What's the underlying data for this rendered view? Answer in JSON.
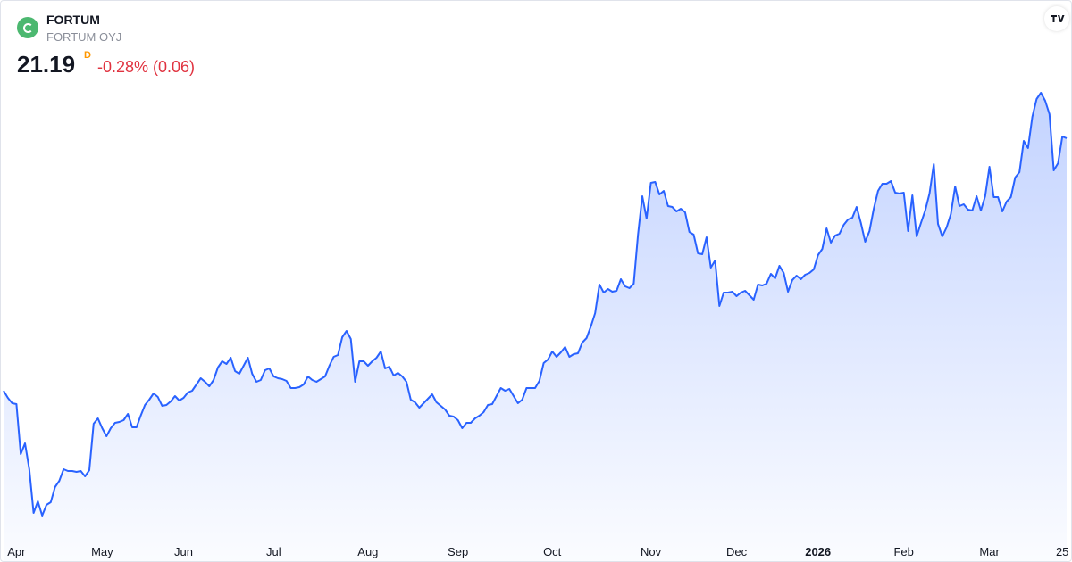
{
  "header": {
    "symbol": "FORTUM",
    "name": "FORTUM OYJ",
    "price": 21.19,
    "interval": "D",
    "change": "-0.28% (0.06)"
  },
  "chart_data": {
    "type": "area",
    "color": "#2962ff",
    "values": [
      15.53,
      15.37,
      15.25,
      15.23,
      14.11,
      14.35,
      13.77,
      12.79,
      13.05,
      12.73,
      12.97,
      13.03,
      13.37,
      13.51,
      13.77,
      13.73,
      13.73,
      13.71,
      13.73,
      13.61,
      13.75,
      14.79,
      14.91,
      14.69,
      14.51,
      14.69,
      14.81,
      14.83,
      14.87,
      15.01,
      14.71,
      14.71,
      14.97,
      15.21,
      15.33,
      15.47,
      15.39,
      15.19,
      15.21,
      15.29,
      15.41,
      15.31,
      15.37,
      15.49,
      15.53,
      15.67,
      15.81,
      15.73,
      15.63,
      15.77,
      16.05,
      16.19,
      16.13,
      16.27,
      15.97,
      15.91,
      16.09,
      16.27,
      15.91,
      15.73,
      15.77,
      15.99,
      16.03,
      15.85,
      15.81,
      15.79,
      15.75,
      15.59,
      15.59,
      15.61,
      15.67,
      15.85,
      15.77,
      15.73,
      15.79,
      15.85,
      16.09,
      16.29,
      16.33,
      16.73,
      16.87,
      16.69,
      15.73,
      16.19,
      16.19,
      16.09,
      16.19,
      16.27,
      16.41,
      16.03,
      16.07,
      15.87,
      15.93,
      15.85,
      15.73,
      15.33,
      15.27,
      15.15,
      15.25,
      15.35,
      15.45,
      15.27,
      15.19,
      15.11,
      14.97,
      14.95,
      14.87,
      14.69,
      14.81,
      14.81,
      14.91,
      14.97,
      15.05,
      15.21,
      15.23,
      15.41,
      15.59,
      15.53,
      15.57,
      15.41,
      15.25,
      15.33,
      15.59,
      15.59,
      15.59,
      15.75,
      16.15,
      16.23,
      16.41,
      16.29,
      16.39,
      16.51,
      16.29,
      16.35,
      16.37,
      16.61,
      16.71,
      16.97,
      17.27,
      17.91,
      17.73,
      17.81,
      17.75,
      17.77,
      18.03,
      17.87,
      17.83,
      17.93,
      19.03,
      19.89,
      19.39,
      20.19,
      20.21,
      19.93,
      20.01,
      19.67,
      19.65,
      19.55,
      19.61,
      19.53,
      19.09,
      19.03,
      18.61,
      18.59,
      18.97,
      18.29,
      18.45,
      17.43,
      17.73,
      17.73,
      17.75,
      17.65,
      17.73,
      17.77,
      17.67,
      17.57,
      17.91,
      17.89,
      17.93,
      18.15,
      18.05,
      18.33,
      18.17,
      17.75,
      18.01,
      18.11,
      18.03,
      18.13,
      18.17,
      18.25,
      18.57,
      18.71,
      19.17,
      18.85,
      19.01,
      19.05,
      19.25,
      19.37,
      19.41,
      19.65,
      19.29,
      18.87,
      19.11,
      19.61,
      20.01,
      20.17,
      20.17,
      20.23,
      19.97,
      19.95,
      19.97,
      19.11,
      19.91,
      18.99,
      19.29,
      19.57,
      19.95,
      20.61,
      19.27,
      18.99,
      19.19,
      19.49,
      20.11,
      19.67,
      19.71,
      19.59,
      19.57,
      19.89,
      19.57,
      19.89,
      20.55,
      19.87,
      19.87,
      19.55,
      19.77,
      19.87,
      20.31,
      20.43,
      21.13,
      20.97,
      21.67,
      22.07,
      22.21,
      22.03,
      21.73,
      20.47,
      20.63,
      21.23,
      21.19
    ],
    "xlim": [
      0,
      248
    ],
    "xticks": [
      {
        "value": 3,
        "label": "Apr"
      },
      {
        "value": 23,
        "label": "May"
      },
      {
        "value": 42,
        "label": "Jun"
      },
      {
        "value": 63,
        "label": "Jul"
      },
      {
        "value": 85,
        "label": "Aug"
      },
      {
        "value": 106,
        "label": "Sep"
      },
      {
        "value": 128,
        "label": "Oct"
      },
      {
        "value": 151,
        "label": "Nov"
      },
      {
        "value": 171,
        "label": "Dec"
      },
      {
        "value": 190,
        "label": "2026"
      },
      {
        "value": 210,
        "label": "Feb"
      },
      {
        "value": 230,
        "label": "Mar"
      },
      {
        "value": 247,
        "label": "25"
      }
    ],
    "ylim": [
      12.27,
      22.37
    ]
  }
}
